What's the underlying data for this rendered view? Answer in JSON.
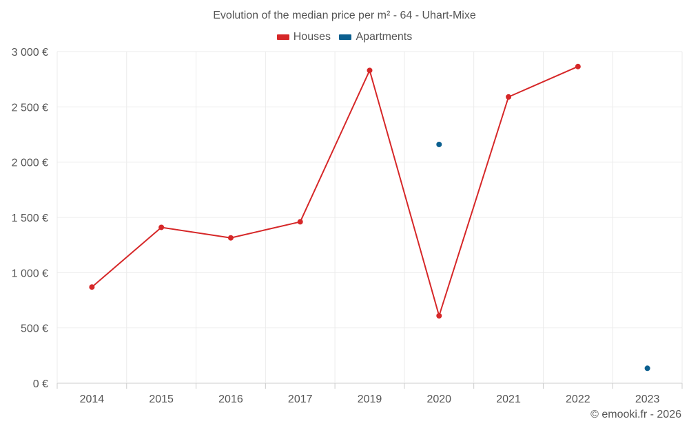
{
  "chart_data": {
    "type": "line",
    "title": "Evolution of the median price per m² - 64 - Uhart-Mixe",
    "categories": [
      "2014",
      "2015",
      "2016",
      "2017",
      "2019",
      "2020",
      "2021",
      "2022",
      "2023"
    ],
    "series": [
      {
        "name": "Houses",
        "color": "#d62728",
        "values": [
          870,
          1410,
          1315,
          1460,
          2830,
          610,
          2590,
          2865,
          null
        ]
      },
      {
        "name": "Apartments",
        "color": "#0b5f8f",
        "values": [
          null,
          null,
          null,
          null,
          null,
          2160,
          null,
          null,
          135
        ]
      }
    ],
    "y_ticks": [
      0,
      500,
      1000,
      1500,
      2000,
      2500,
      3000
    ],
    "y_tick_labels": [
      "0 €",
      "500 €",
      "1 000 €",
      "1 500 €",
      "2 000 €",
      "2 500 €",
      "3 000 €"
    ],
    "ylim": [
      0,
      3000
    ],
    "xlabel": "",
    "ylabel": "",
    "grid": true,
    "legend_position": "top-center"
  },
  "credit": "© emooki.fr - 2026"
}
